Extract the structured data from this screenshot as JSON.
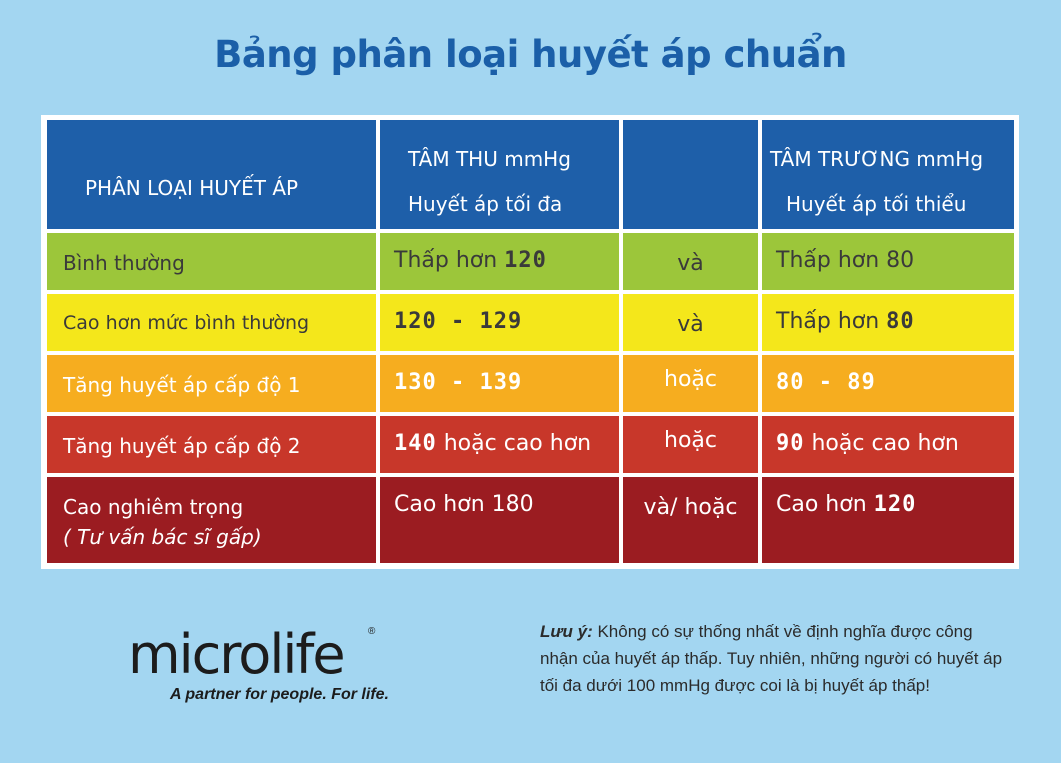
{
  "title": "Bảng phân loại huyết áp chuẩn",
  "table": {
    "header": {
      "category": "PHÂN LOẠI HUYẾT ÁP",
      "systolic_line1": "TÂM THU mmHg",
      "systolic_line2": "Huyết áp tối đa",
      "diastolic_line1": "TÂM TRƯƠNG mmHg",
      "diastolic_line2": "Huyết áp tối thiểu"
    },
    "rows": [
      {
        "label": "Bình thường",
        "systolic_pre": "Thấp hơn ",
        "systolic_bold": "120",
        "systolic_post": "",
        "connector": "và",
        "diastolic_pre": "Thấp hơn 80",
        "diastolic_bold": "",
        "diastolic_post": ""
      },
      {
        "label": "Cao hơn mức bình thường",
        "systolic_pre": "",
        "systolic_bold": "120 - 129",
        "systolic_post": "",
        "connector": "và",
        "diastolic_pre": "Thấp hơn ",
        "diastolic_bold": "80",
        "diastolic_post": ""
      },
      {
        "label": "Tăng huyết áp cấp độ 1",
        "systolic_pre": "",
        "systolic_bold": "130 - 139",
        "systolic_post": "",
        "connector": "hoặc",
        "diastolic_pre": "",
        "diastolic_bold": "80 - 89",
        "diastolic_post": ""
      },
      {
        "label": "Tăng huyết áp cấp độ 2",
        "systolic_pre": "",
        "systolic_bold": "140",
        "systolic_post": " hoặc cao hơn",
        "connector": "hoặc",
        "diastolic_pre": "",
        "diastolic_bold": "90",
        "diastolic_post": " hoặc cao hơn"
      },
      {
        "label": "Cao nghiêm trọng",
        "sublabel": "( Tư vấn bác sĩ gấp)",
        "systolic_pre": "Cao hơn 180",
        "systolic_bold": "",
        "systolic_post": "",
        "connector": "và/ hoặc",
        "diastolic_pre": "Cao hơn ",
        "diastolic_bold": "120",
        "diastolic_post": ""
      }
    ],
    "row_colors": [
      "#9cc63a",
      "#f4e71b",
      "#f6ad1f",
      "#c8372a",
      "#9b1c21"
    ]
  },
  "logo": {
    "name": "microlife",
    "registered": "®",
    "tagline": "A partner for people. For life."
  },
  "note": {
    "label": "Lưu ý:",
    "text": " Không có sự thống nhất về định nghĩa được công nhận của huyết áp thấp. Tuy nhiên, những người có huyết áp tối đa dưới 100 mmHg được coi là bị huyết áp thấp!"
  },
  "colors": {
    "background": "#a3d6f1",
    "title": "#1b5fa8",
    "header": "#1e5fa9"
  }
}
